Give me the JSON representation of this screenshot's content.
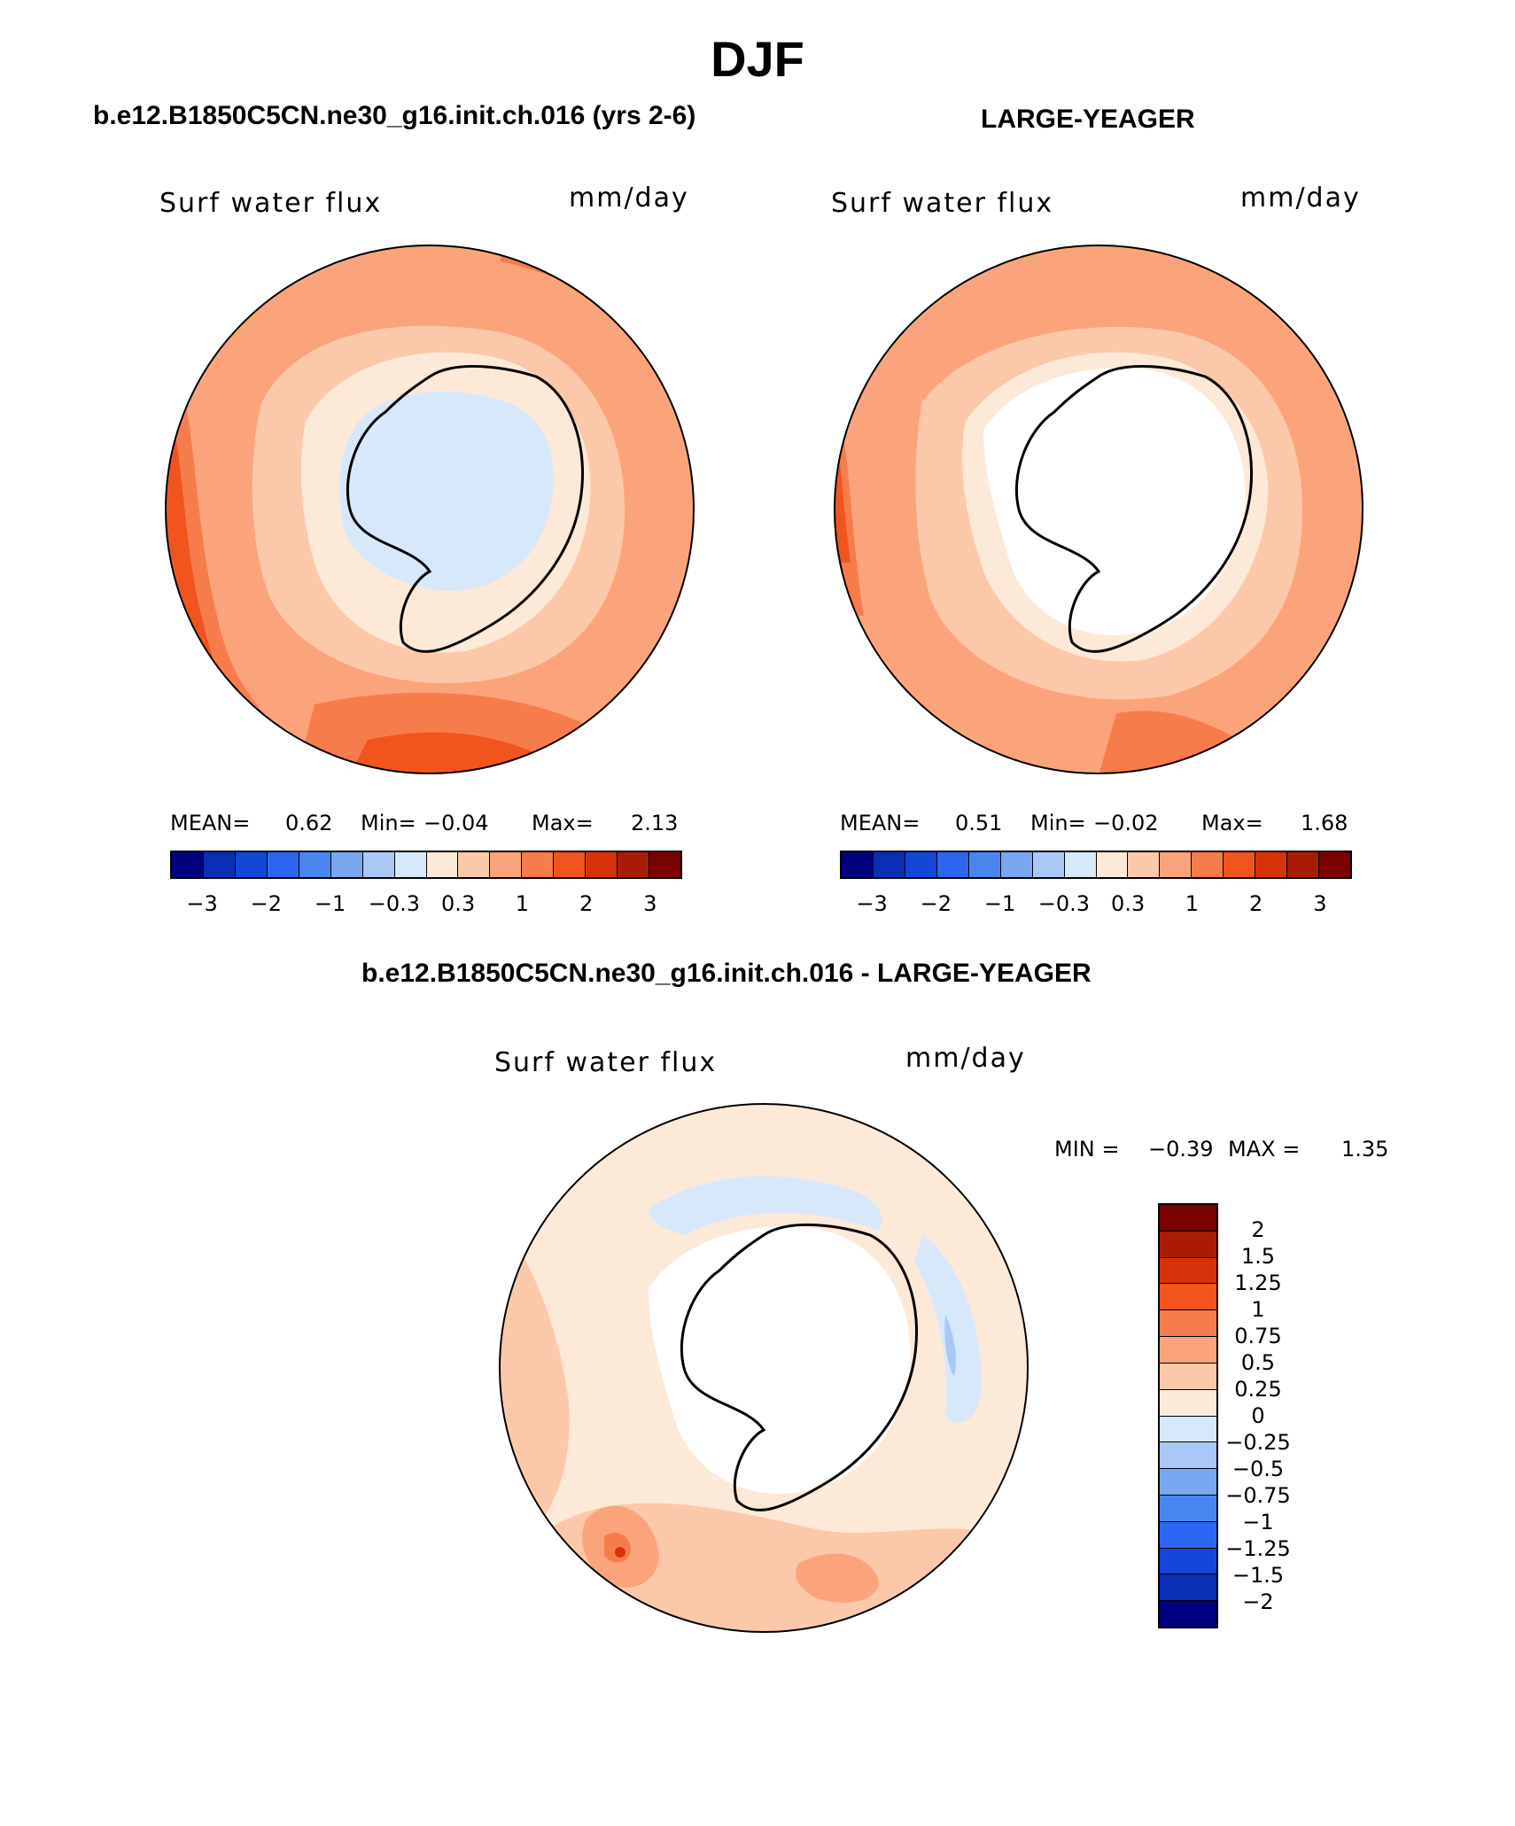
{
  "title": "DJF",
  "palette": {
    "full": [
      "#000080",
      "#0a2fb4",
      "#1446d9",
      "#2a66f0",
      "#4a86f0",
      "#7aa8f0",
      "#aac8f6",
      "#d8e8fb",
      "#fde9d8",
      "#fcc8aa",
      "#fba47c",
      "#f77c4c",
      "#f2541e",
      "#d8320a",
      "#a81c06",
      "#7a0202"
    ],
    "diff": [
      "#7a0202",
      "#a81c06",
      "#d8320a",
      "#f2541e",
      "#f77c4c",
      "#fba47c",
      "#fcc8aa",
      "#fde9d8",
      "#d8e8fb",
      "#aac8f6",
      "#7aa8f0",
      "#4a86f0",
      "#2a66f0",
      "#1446d9",
      "#0a2fb4",
      "#000080"
    ]
  },
  "panels": {
    "left": {
      "title": "b.e12.B1850C5CN.ne30_g16.init.ch.016 (yrs 2-6)",
      "variable": "Surf water flux",
      "units": "mm/day",
      "stats": {
        "mean_label": "MEAN=",
        "mean": "0.62",
        "min_label": "Min=",
        "min": "−0.04",
        "max_label": "Max=",
        "max": "2.13"
      },
      "colorbar_ticks": [
        "−3",
        "−2",
        "−1",
        "−0.3",
        "0.3",
        "1",
        "2",
        "3"
      ]
    },
    "right": {
      "title": "LARGE-YEAGER",
      "variable": "Surf water flux",
      "units": "mm/day",
      "stats": {
        "mean_label": "MEAN=",
        "mean": "0.51",
        "min_label": "Min=",
        "min": "−0.02",
        "max_label": "Max=",
        "max": "1.68"
      },
      "colorbar_ticks": [
        "−3",
        "−2",
        "−1",
        "−0.3",
        "0.3",
        "1",
        "2",
        "3"
      ]
    },
    "diff": {
      "title": "b.e12.B1850C5CN.ne30_g16.init.ch.016 - LARGE-YEAGER",
      "variable": "Surf water flux",
      "units": "mm/day",
      "stats": {
        "min_label": "MIN =",
        "min": "−0.39",
        "max_label": "MAX =",
        "max": "1.35"
      },
      "colorbar_ticks": [
        "2",
        "1.5",
        "1.25",
        "1",
        "0.75",
        "0.5",
        "0.25",
        "0",
        "−0.25",
        "−0.5",
        "−0.75",
        "−1",
        "−1.25",
        "−1.5",
        "−2"
      ]
    }
  }
}
